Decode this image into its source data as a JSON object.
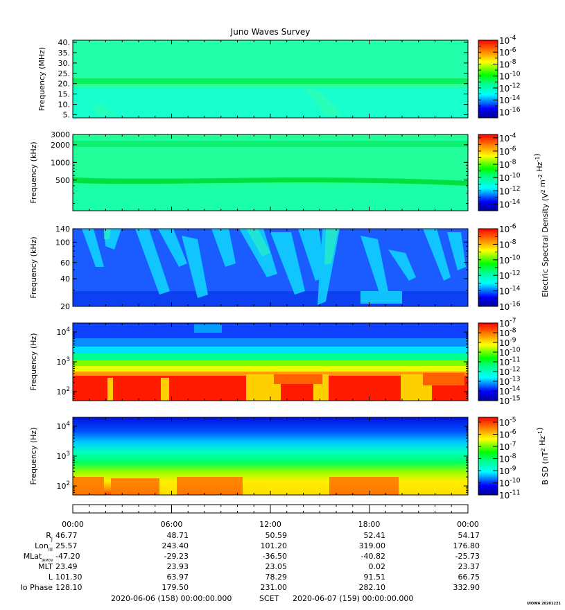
{
  "chart_data": {
    "type": "heatmap",
    "title": "Juno Waves Survey",
    "credit": "UIOWA 20201221",
    "time_axis": {
      "ticks": [
        "00:00",
        "06:00",
        "12:00",
        "18:00",
        "00:00"
      ],
      "start_label": "2020-06-06 (158) 00:00:00.000",
      "scet_label": "SCET",
      "end_label": "2020-06-07 (159) 00:00:00.000"
    },
    "ephemeris": [
      {
        "label": "R",
        "sub": "J",
        "values": [
          "46.77",
          "48.71",
          "50.59",
          "52.41",
          "54.17"
        ]
      },
      {
        "label": "Lon",
        "sub": "III",
        "values": [
          "25.57",
          "243.40",
          "101.20",
          "319.00",
          "176.80"
        ]
      },
      {
        "label": "MLat",
        "sub": "JRM09",
        "values": [
          "-47.20",
          "-29.23",
          "-36.50",
          "-40.82",
          "-25.73"
        ]
      },
      {
        "label": "MLT",
        "sub": "",
        "values": [
          "23.49",
          "23.93",
          "23.05",
          "0.02",
          "23.37"
        ]
      },
      {
        "label": "L",
        "sub": "",
        "values": [
          "101.30",
          "63.97",
          "78.29",
          "91.51",
          "66.75"
        ]
      },
      {
        "label": "Io Phase",
        "sub": "",
        "values": [
          "128.10",
          "179.50",
          "231.00",
          "282.10",
          "332.90"
        ]
      }
    ],
    "panels": [
      {
        "ylabel": "Frequency (MHz)",
        "yscale": "linear",
        "ylim": [
          3.5,
          41
        ],
        "yticks": [
          {
            "v": 5,
            "label": "5."
          },
          {
            "v": 10,
            "label": "10."
          },
          {
            "v": 15,
            "label": "15."
          },
          {
            "v": 20,
            "label": "20."
          },
          {
            "v": 25,
            "label": "25."
          },
          {
            "v": 30,
            "label": "30."
          },
          {
            "v": 35,
            "label": "35."
          },
          {
            "v": 40,
            "label": "40."
          }
        ],
        "colorbar": {
          "range_exp": [
            -17,
            -4
          ],
          "tick_exps": [
            -4,
            -6,
            -8,
            -10,
            -12,
            -14,
            -16
          ],
          "label": ""
        }
      },
      {
        "ylabel": "Frequency (kHz)",
        "yscale": "log",
        "ylim": [
          150,
          3000
        ],
        "yticks": [
          {
            "v": 500,
            "label": "500"
          },
          {
            "v": 1000,
            "label": "1000"
          },
          {
            "v": 2000,
            "label": "2000"
          },
          {
            "v": 3000,
            "label": "3000"
          }
        ],
        "colorbar": {
          "range_exp": [
            -15,
            -3.5
          ],
          "tick_exps": [
            -4,
            -6,
            -8,
            -10,
            -12,
            -14
          ],
          "label": "Electric Spectral Density (V^2 m^-2 Hz^-1)"
        }
      },
      {
        "ylabel": "Frequency (kHz)",
        "yscale": "log",
        "ylim": [
          20,
          140
        ],
        "yticks": [
          {
            "v": 20,
            "label": "20"
          },
          {
            "v": 40,
            "label": "40"
          },
          {
            "v": 60,
            "label": "60"
          },
          {
            "v": 100,
            "label": "100"
          },
          {
            "v": 140,
            "label": "140"
          }
        ],
        "colorbar": {
          "range_exp": [
            -16,
            -6
          ],
          "tick_exps": [
            -6,
            -8,
            -10,
            -12,
            -14,
            -16
          ],
          "label": ""
        }
      },
      {
        "ylabel": "Frequency (Hz)",
        "yscale": "log",
        "ylim": [
          50,
          20000
        ],
        "yticks": [
          {
            "v": 100,
            "label": "10^2"
          },
          {
            "v": 1000,
            "label": "10^3"
          },
          {
            "v": 10000,
            "label": "10^4"
          }
        ],
        "colorbar": {
          "range_exp": [
            -15,
            -7
          ],
          "tick_exps": [
            -7,
            -8,
            -9,
            -10,
            -11,
            -12,
            -13,
            -14,
            -15
          ],
          "label": ""
        }
      },
      {
        "ylabel": "Frequency (Hz)",
        "yscale": "log",
        "ylim": [
          50,
          20000
        ],
        "yticks": [
          {
            "v": 100,
            "label": "10^2"
          },
          {
            "v": 1000,
            "label": "10^3"
          },
          {
            "v": 10000,
            "label": "10^4"
          }
        ],
        "colorbar": {
          "range_exp": [
            -11,
            -4.6
          ],
          "tick_exps": [
            -5,
            -6,
            -7,
            -8,
            -9,
            -10,
            -11
          ],
          "label": "B SD (nT^2 Hz^-1)"
        }
      }
    ]
  }
}
